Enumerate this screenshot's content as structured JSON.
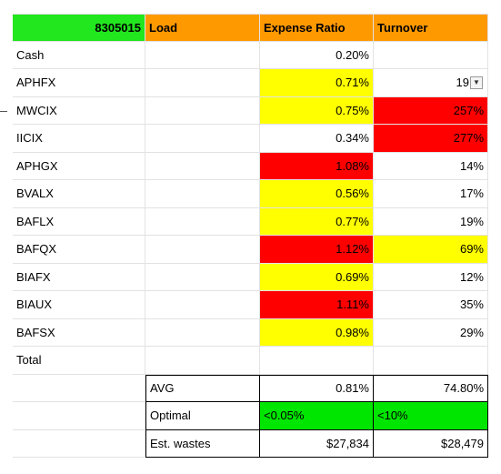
{
  "header": {
    "id_label": "8305015",
    "load": "Load",
    "expense_ratio": "Expense Ratio",
    "turnover": "Turnover"
  },
  "rows": [
    {
      "name": "Cash",
      "load": "",
      "expense": "0.20%",
      "turnover": "",
      "expense_color": "#ffffff",
      "turnover_color": "#ffffff"
    },
    {
      "name": "APHFX",
      "load": "",
      "expense": "0.71%",
      "turnover": "19",
      "expense_color": "#ffff00",
      "turnover_color": "#ffffff"
    },
    {
      "name": "MWCIX",
      "load": "",
      "expense": "0.75%",
      "turnover": "257%",
      "expense_color": "#ffff00",
      "turnover_color": "#ff0000"
    },
    {
      "name": "IICIX",
      "load": "",
      "expense": "0.34%",
      "turnover": "277%",
      "expense_color": "#ffffff",
      "turnover_color": "#ff0000"
    },
    {
      "name": "APHGX",
      "load": "",
      "expense": "1.08%",
      "turnover": "14%",
      "expense_color": "#ff0000",
      "turnover_color": "#ffffff"
    },
    {
      "name": "BVALX",
      "load": "",
      "expense": "0.56%",
      "turnover": "17%",
      "expense_color": "#ffff00",
      "turnover_color": "#ffffff"
    },
    {
      "name": "BAFLX",
      "load": "",
      "expense": "0.77%",
      "turnover": "19%",
      "expense_color": "#ffff00",
      "turnover_color": "#ffffff"
    },
    {
      "name": "BAFQX",
      "load": "",
      "expense": "1.12%",
      "turnover": "69%",
      "expense_color": "#ff0000",
      "turnover_color": "#ffff00"
    },
    {
      "name": "BIAFX",
      "load": "",
      "expense": "0.69%",
      "turnover": "12%",
      "expense_color": "#ffff00",
      "turnover_color": "#ffffff"
    },
    {
      "name": "BIAUX",
      "load": "",
      "expense": "1.11%",
      "turnover": "35%",
      "expense_color": "#ff0000",
      "turnover_color": "#ffffff"
    },
    {
      "name": "BAFSX",
      "load": "",
      "expense": "0.98%",
      "turnover": "29%",
      "expense_color": "#ffff00",
      "turnover_color": "#ffffff"
    },
    {
      "name": "Total",
      "load": "",
      "expense": "",
      "turnover": "",
      "expense_color": "#ffffff",
      "turnover_color": "#ffffff"
    }
  ],
  "summary": [
    {
      "label": "AVG",
      "expense": "0.81%",
      "turnover": "74.80%",
      "color": "#ffffff"
    },
    {
      "label": "Optimal",
      "expense": "<0.05%",
      "turnover": "<10%",
      "color": "#00e600"
    },
    {
      "label": "Est. wastes",
      "expense": "$27,834",
      "turnover": "$28,479",
      "color": "#ffffff"
    }
  ],
  "colors": {
    "header_id_bg": "#22e61e",
    "header_bg": "#ff9900",
    "red": "#ff0000",
    "yellow": "#ffff00",
    "green": "#00e600"
  },
  "icons": {
    "filter": "filter-dropdown-icon"
  }
}
